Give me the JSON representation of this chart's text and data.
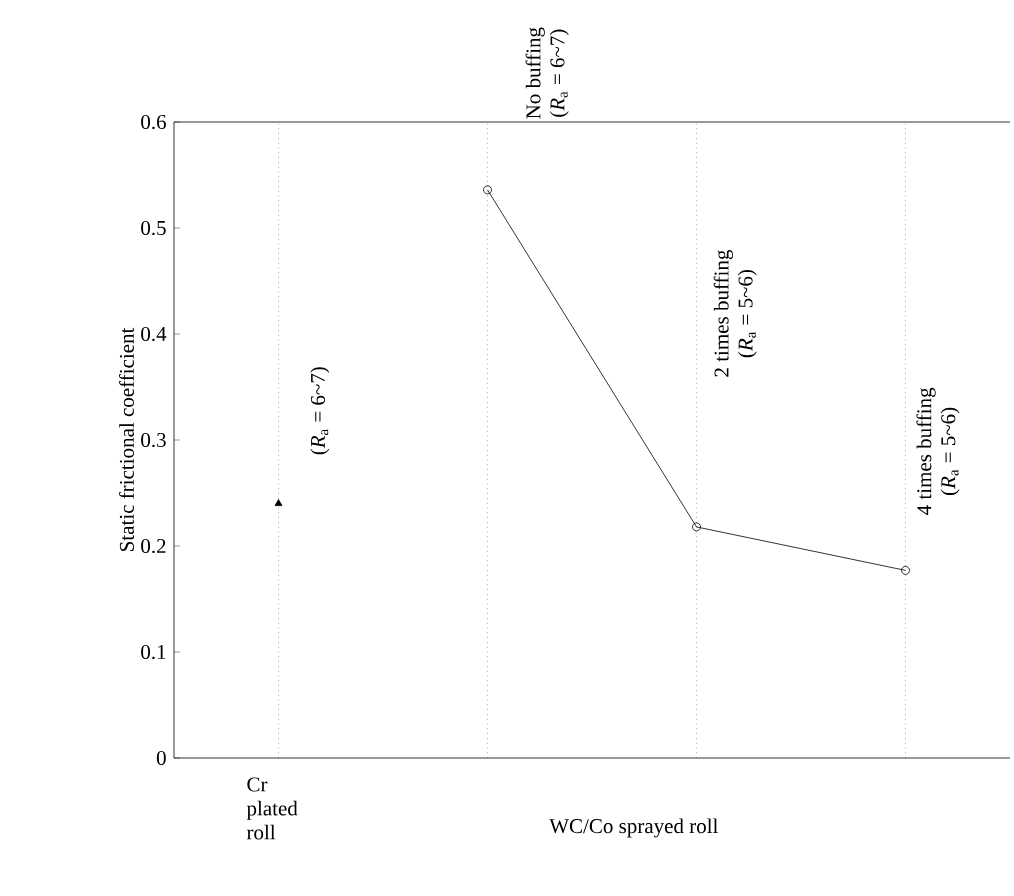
{
  "chart_data": {
    "type": "line",
    "ylabel": "Static frictional coefficient",
    "categories": [
      "Cr plated roll",
      null,
      null,
      null
    ],
    "series": [
      {
        "type": "scatter",
        "color": "#000000",
        "marker": "triangle",
        "values": [
          0.24,
          null,
          null,
          null
        ]
      },
      {
        "color": "#000000",
        "marker": "circle",
        "values": [
          null,
          0.536,
          0.218,
          0.177
        ]
      }
    ],
    "ylim": [
      0,
      0.6
    ],
    "yticks": [
      0,
      0.1,
      0.2,
      0.3,
      0.4,
      0.5,
      0.6
    ],
    "grid": "x",
    "annotations": [
      "(*R*$_{a}$ = 6~7)",
      "No buffing",
      "(*R*$_{a}$ = 6~7)",
      "2 times buffing",
      "(*R*$_{a}$ = 5~6)",
      "4 times buffing",
      "(*R*$_{a}$ = 5~6)",
      "WC/Co sprayed roll"
    ]
  }
}
